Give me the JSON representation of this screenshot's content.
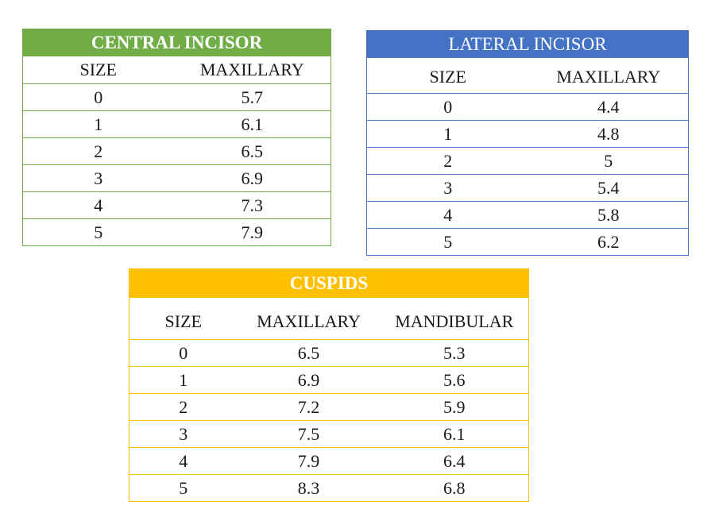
{
  "central_incisor": {
    "title": "CENTRAL INCISOR",
    "columns": [
      "SIZE",
      "MAXILLARY"
    ],
    "rows": [
      [
        "0",
        "5.7"
      ],
      [
        "1",
        "6.1"
      ],
      [
        "2",
        "6.5"
      ],
      [
        "3",
        "6.9"
      ],
      [
        "4",
        "7.3"
      ],
      [
        "5",
        "7.9"
      ]
    ],
    "color": "#70ad47"
  },
  "lateral_incisor": {
    "title": "LATERAL INCISOR",
    "columns": [
      "SIZE",
      "MAXILLARY"
    ],
    "rows": [
      [
        "0",
        "4.4"
      ],
      [
        "1",
        "4.8"
      ],
      [
        "2",
        "5"
      ],
      [
        "3",
        "5.4"
      ],
      [
        "4",
        "5.8"
      ],
      [
        "5",
        "6.2"
      ]
    ],
    "color": "#4472c4"
  },
  "cuspids": {
    "title": "CUSPIDS",
    "columns": [
      "SIZE",
      "MAXILLARY",
      "MANDIBULAR"
    ],
    "rows": [
      [
        "0",
        "6.5",
        "5.3"
      ],
      [
        "1",
        "6.9",
        "5.6"
      ],
      [
        "2",
        "7.2",
        "5.9"
      ],
      [
        "3",
        "7.5",
        "6.1"
      ],
      [
        "4",
        "7.9",
        "6.4"
      ],
      [
        "5",
        "8.3",
        "6.8"
      ]
    ],
    "color": "#ffc000"
  }
}
